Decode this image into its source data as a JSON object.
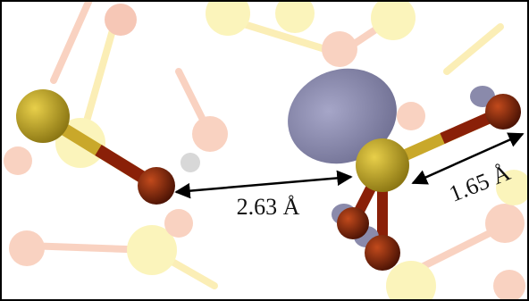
{
  "annotations": [
    {
      "label": "2.63 Å"
    },
    {
      "label": "1.65 Å"
    }
  ]
}
